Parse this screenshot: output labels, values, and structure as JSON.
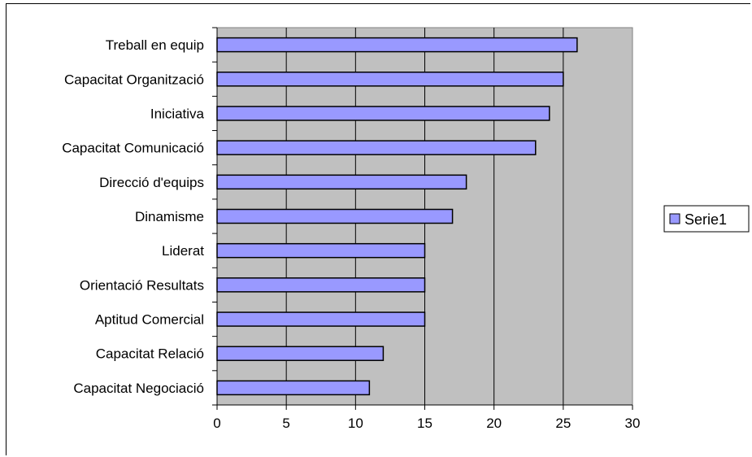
{
  "chart_data": {
    "type": "bar",
    "orientation": "horizontal",
    "categories": [
      "Treball en equip",
      "Capacitat Organització",
      "Iniciativa",
      "Capacitat Comunicació",
      "Direcció d'equips",
      "Dinamisme",
      "Liderat",
      "Orientació Resultats",
      "Aptitud Comercial",
      "Capacitat Relació",
      "Capacitat Negociació"
    ],
    "series": [
      {
        "name": "Serie1",
        "values": [
          26,
          25,
          24,
          23,
          18,
          17,
          15,
          15,
          15,
          12,
          11
        ],
        "color": "#9999ff"
      }
    ],
    "xlim": [
      0,
      30
    ],
    "xticks": [
      "0",
      "5",
      "10",
      "15",
      "20",
      "25",
      "30"
    ],
    "grid": "vertical",
    "plot_background": "#c0c0c0",
    "legend_position": "right"
  }
}
